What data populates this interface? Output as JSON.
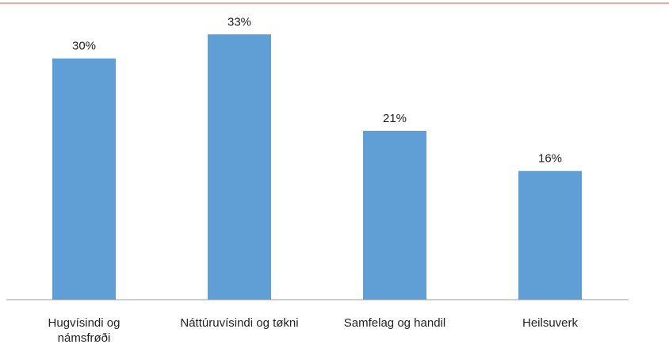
{
  "chart_data": {
    "type": "bar",
    "categories": [
      "Hugvísindi og námsfrøði",
      "Náttúruvísindi og tøkni",
      "Samfelag og handil",
      "Heilsuverk"
    ],
    "values": [
      30,
      33,
      21,
      16
    ],
    "value_labels": [
      "30%",
      "33%",
      "21%",
      "16%"
    ],
    "color": "#5f9fd6",
    "ylim": [
      0,
      35
    ]
  }
}
